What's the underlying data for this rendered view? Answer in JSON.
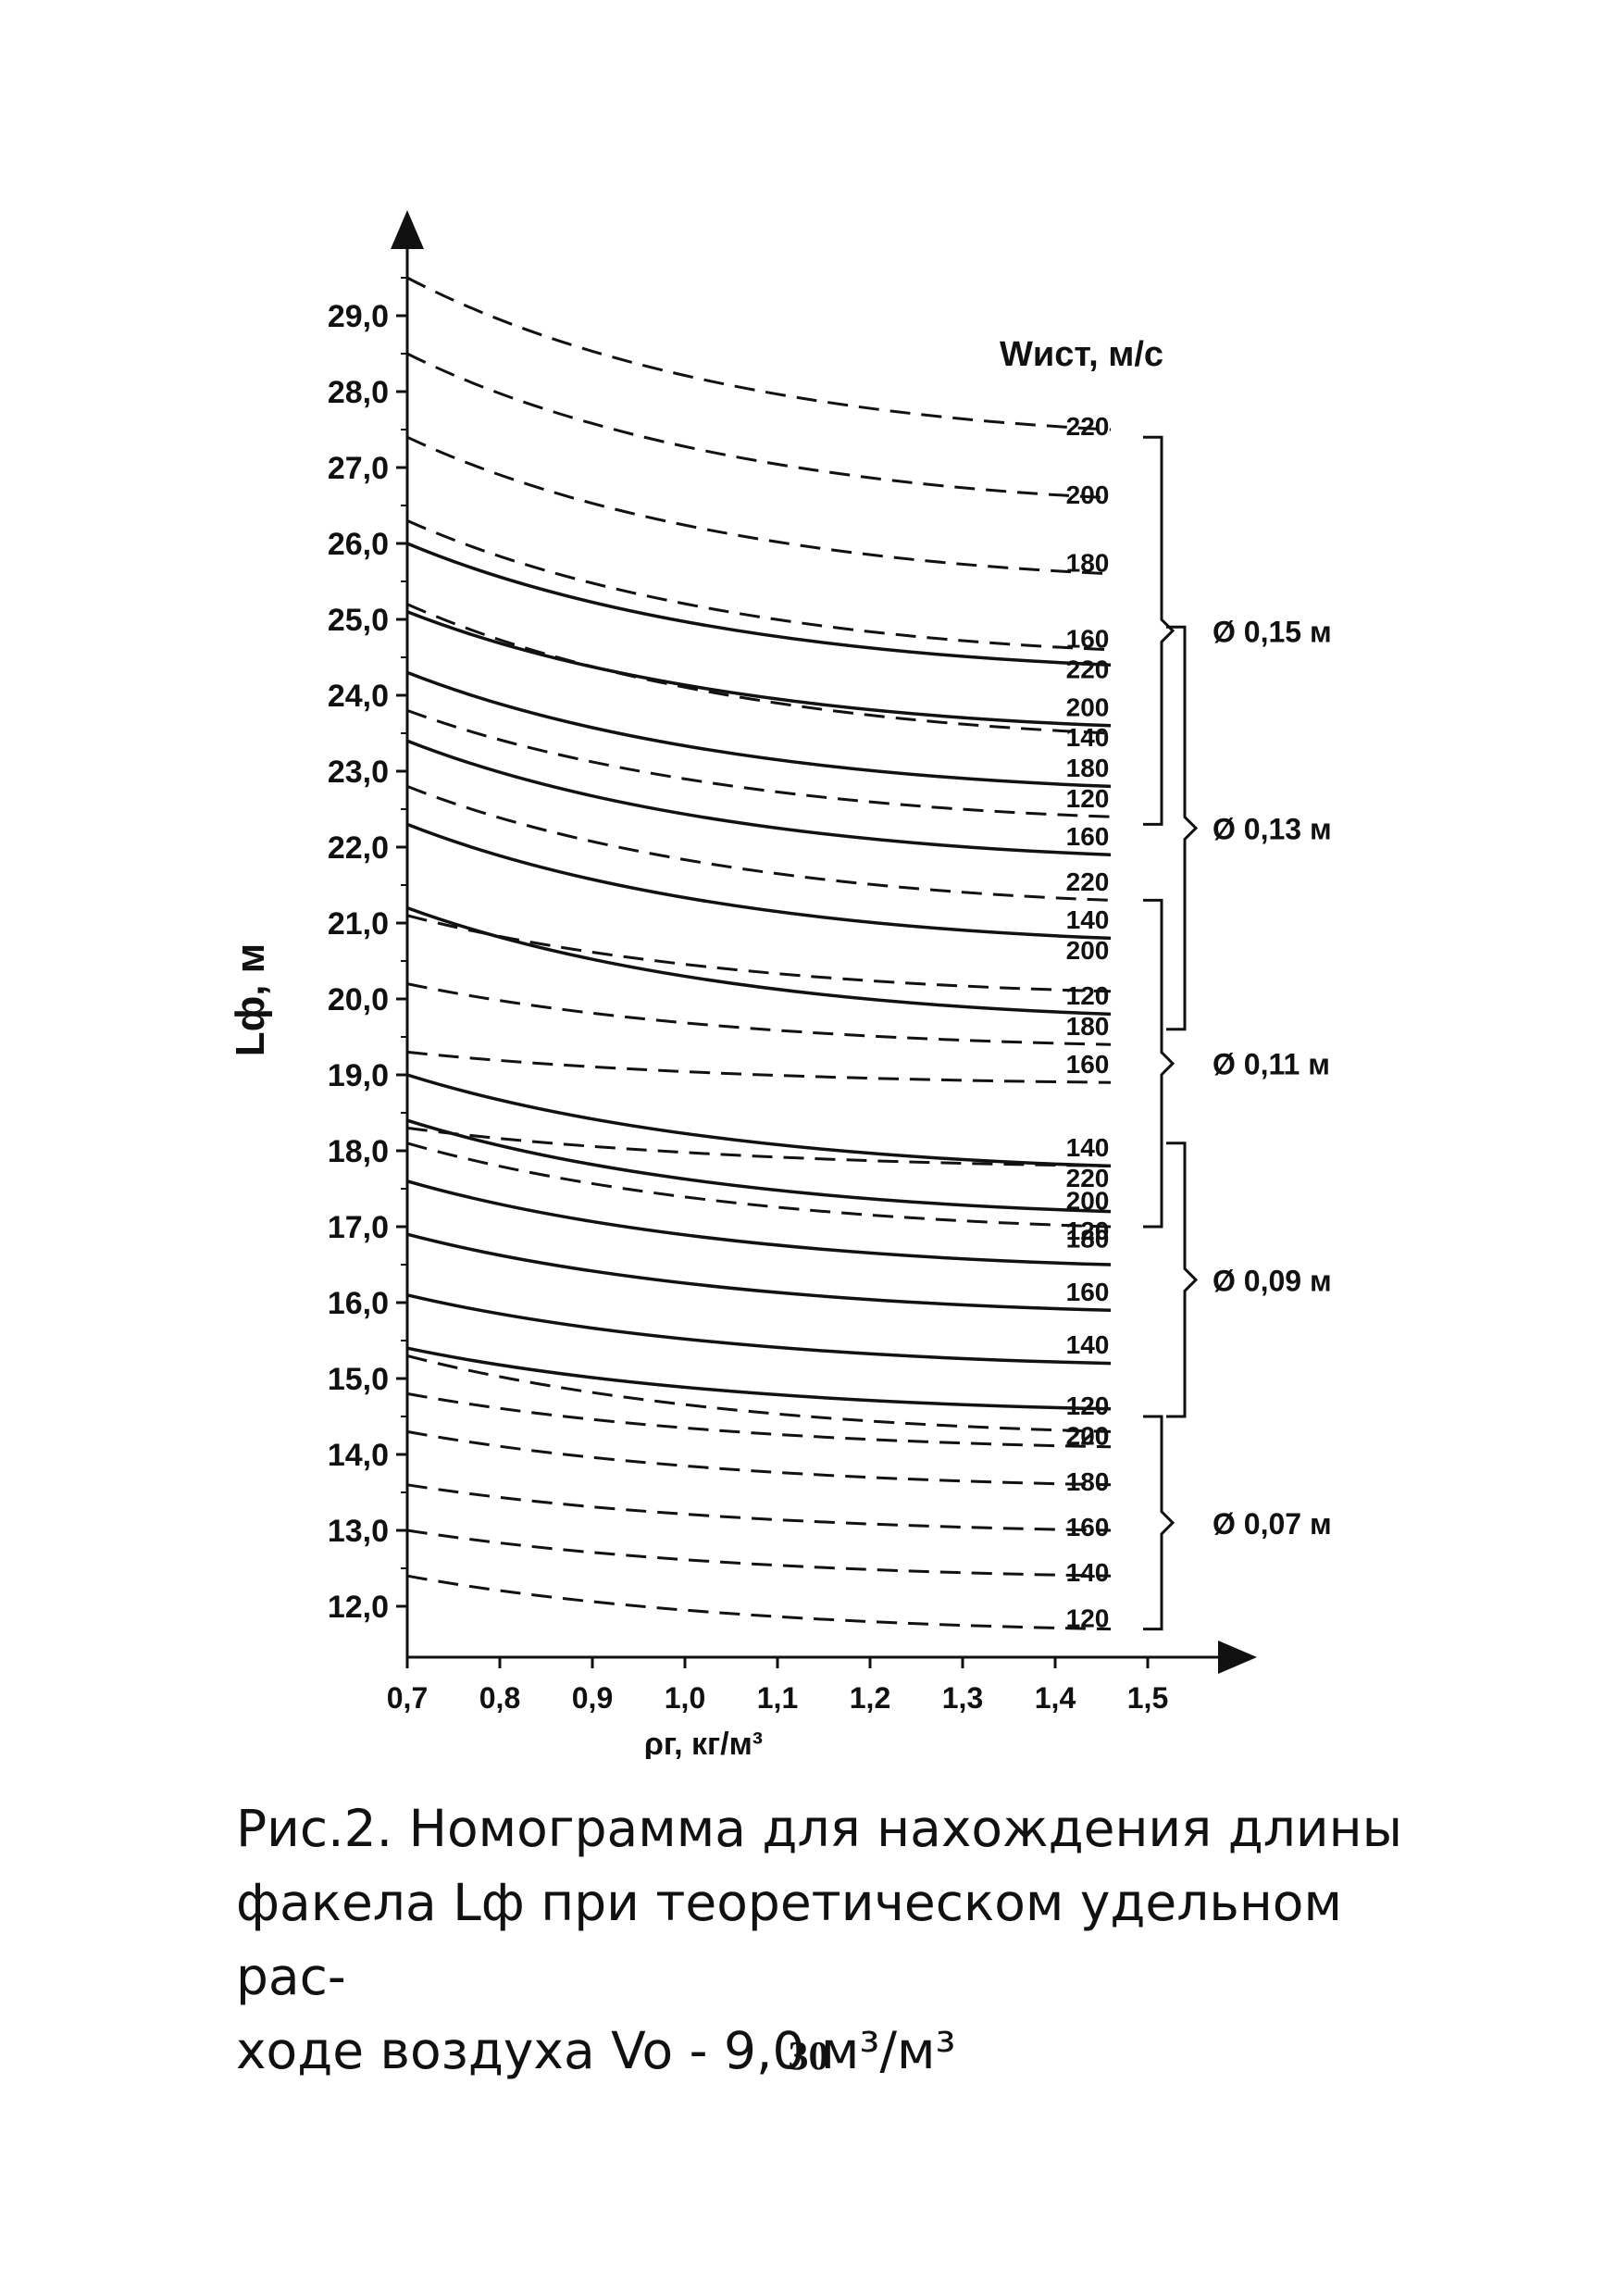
{
  "chart_data": {
    "type": "line",
    "title": "",
    "xlabel": "ρг, кг/м³",
    "ylabel": "Lф, м",
    "xlim": [
      0.7,
      1.5
    ],
    "ylim": [
      11.5,
      30.0
    ],
    "x_ticks": [
      "0,7",
      "0,8",
      "0,9",
      "1,0",
      "1,1",
      "1,2",
      "1,3",
      "1,4",
      "1,5"
    ],
    "y_ticks": [
      "12,0",
      "13,0",
      "14,0",
      "15,0",
      "16,0",
      "17,0",
      "18,0",
      "19,0",
      "20,0",
      "21,0",
      "22,0",
      "23,0",
      "24,0",
      "25,0",
      "26,0",
      "27,0",
      "28,0",
      "29,0"
    ],
    "legend_title": "Wист, м/с",
    "x": [
      0.7,
      1.46
    ],
    "series": [
      {
        "group": "Ø 0,15 м",
        "name": "220",
        "style": "dashed",
        "values": [
          29.5,
          27.5
        ]
      },
      {
        "group": "Ø 0,15 м",
        "name": "200",
        "style": "dashed",
        "values": [
          28.5,
          26.6
        ]
      },
      {
        "group": "Ø 0,15 м",
        "name": "180",
        "style": "dashed",
        "values": [
          27.4,
          25.6
        ]
      },
      {
        "group": "Ø 0,15 м",
        "name": "160",
        "style": "dashed",
        "values": [
          26.3,
          24.6
        ]
      },
      {
        "group": "Ø 0,15 м",
        "name": "140",
        "style": "dashed",
        "values": [
          25.2,
          23.5
        ]
      },
      {
        "group": "Ø 0,15 м",
        "name": "120",
        "style": "dashed",
        "values": [
          23.8,
          22.4
        ]
      },
      {
        "group": "Ø 0,13 м",
        "name": "220",
        "style": "solid",
        "values": [
          26.0,
          24.4
        ]
      },
      {
        "group": "Ø 0,13 м",
        "name": "200",
        "style": "solid",
        "values": [
          25.1,
          23.6
        ]
      },
      {
        "group": "Ø 0,13 м",
        "name": "180",
        "style": "solid",
        "values": [
          24.3,
          22.8
        ]
      },
      {
        "group": "Ø 0,13 м",
        "name": "160",
        "style": "solid",
        "values": [
          23.4,
          21.9
        ]
      },
      {
        "group": "Ø 0,13 м",
        "name": "140",
        "style": "solid",
        "values": [
          22.3,
          20.8
        ]
      },
      {
        "group": "Ø 0,13 м",
        "name": "120",
        "style": "solid",
        "values": [
          21.2,
          19.8
        ]
      },
      {
        "group": "Ø 0,11 м",
        "name": "220",
        "style": "dashed",
        "values": [
          22.8,
          21.3
        ]
      },
      {
        "group": "Ø 0,11 м",
        "name": "200",
        "style": "dashed",
        "values": [
          21.1,
          20.1
        ]
      },
      {
        "group": "Ø 0,11 м",
        "name": "180",
        "style": "dashed",
        "values": [
          20.2,
          19.4
        ]
      },
      {
        "group": "Ø 0,11 м",
        "name": "160",
        "style": "dashed",
        "values": [
          19.3,
          18.9
        ]
      },
      {
        "group": "Ø 0,11 м",
        "name": "140",
        "style": "dashed",
        "values": [
          18.3,
          17.8
        ]
      },
      {
        "group": "Ø 0,11 м",
        "name": "120",
        "style": "dashed",
        "values": [
          18.1,
          17.0
        ]
      },
      {
        "group": "Ø 0,09 м",
        "name": "220",
        "style": "solid",
        "values": [
          18.4,
          17.2
        ]
      },
      {
        "group": "Ø 0,09 м",
        "name": "200",
        "style": "solid",
        "values": [
          17.6,
          16.5
        ]
      },
      {
        "group": "Ø 0,09 м",
        "name": "180",
        "style": "solid",
        "values": [
          16.9,
          15.9
        ]
      },
      {
        "group": "Ø 0,09 м",
        "name": "160",
        "style": "solid",
        "values": [
          16.1,
          15.2
        ]
      },
      {
        "group": "Ø 0,09 м",
        "name": "140",
        "style": "solid",
        "values": [
          15.4,
          14.6
        ]
      },
      {
        "group": "Ø 0,09 м",
        "name": "120",
        "style": "solid",
        "values": [
          19.0,
          17.8
        ]
      },
      {
        "group": "Ø 0,07 м",
        "name": "220",
        "style": "dashed",
        "values": [
          15.3,
          14.3
        ]
      },
      {
        "group": "Ø 0,07 м",
        "name": "200",
        "style": "dashed",
        "values": [
          14.8,
          14.1
        ]
      },
      {
        "group": "Ø 0,07 м",
        "name": "180",
        "style": "dashed",
        "values": [
          14.3,
          13.6
        ]
      },
      {
        "group": "Ø 0,07 м",
        "name": "160",
        "style": "dashed",
        "values": [
          13.6,
          13.0
        ]
      },
      {
        "group": "Ø 0,07 м",
        "name": "140",
        "style": "dashed",
        "values": [
          13.0,
          12.4
        ]
      },
      {
        "group": "Ø 0,07 м",
        "name": "120",
        "style": "dashed",
        "values": [
          12.4,
          11.7
        ]
      }
    ],
    "curve_labels": [
      {
        "text": "220",
        "y": 27.5
      },
      {
        "text": "200",
        "y": 26.6
      },
      {
        "text": "180",
        "y": 25.7
      },
      {
        "text": "160",
        "y": 24.7
      },
      {
        "text": "220",
        "y": 24.3
      },
      {
        "text": "200",
        "y": 23.8
      },
      {
        "text": "140",
        "y": 23.4
      },
      {
        "text": "180",
        "y": 23.0
      },
      {
        "text": "120",
        "y": 22.6
      },
      {
        "text": "160",
        "y": 22.1
      },
      {
        "text": "220",
        "y": 21.5
      },
      {
        "text": "140",
        "y": 21.0
      },
      {
        "text": "200",
        "y": 20.6
      },
      {
        "text": "120",
        "y": 20.0
      },
      {
        "text": "180",
        "y": 19.6
      },
      {
        "text": "160",
        "y": 19.1
      },
      {
        "text": "140",
        "y": 18.0
      },
      {
        "text": "220",
        "y": 17.6
      },
      {
        "text": "200",
        "y": 17.3
      },
      {
        "text": "120",
        "y": 16.9
      },
      {
        "text": "180",
        "y": 16.8
      },
      {
        "text": "160",
        "y": 16.1
      },
      {
        "text": "140",
        "y": 15.4
      },
      {
        "text": "120",
        "y": 14.6
      },
      {
        "text": "200",
        "y": 14.2
      },
      {
        "text": "220",
        "y": 14.2
      },
      {
        "text": "180",
        "y": 13.6
      },
      {
        "text": "160",
        "y": 13.0
      },
      {
        "text": "140",
        "y": 12.4
      },
      {
        "text": "120",
        "y": 11.8
      }
    ],
    "groups": [
      {
        "label": "Ø 0,15 м",
        "top": 27.4,
        "bottom": 22.3
      },
      {
        "label": "Ø 0,13 м",
        "top": 24.9,
        "bottom": 19.6
      },
      {
        "label": "Ø 0,11 м",
        "top": 21.3,
        "bottom": 17.0
      },
      {
        "label": "Ø 0,09 м",
        "top": 18.1,
        "bottom": 14.5
      },
      {
        "label": "Ø 0,07 м",
        "top": 14.5,
        "bottom": 11.7
      }
    ]
  },
  "caption": {
    "line1": "Рис.2. Номограмма для нахождения длины",
    "line2": "факела Lф при теоретическом удельном рас-",
    "line3": "ходе воздуха Vo - 9,0 м³/м³"
  },
  "page_number": "30"
}
